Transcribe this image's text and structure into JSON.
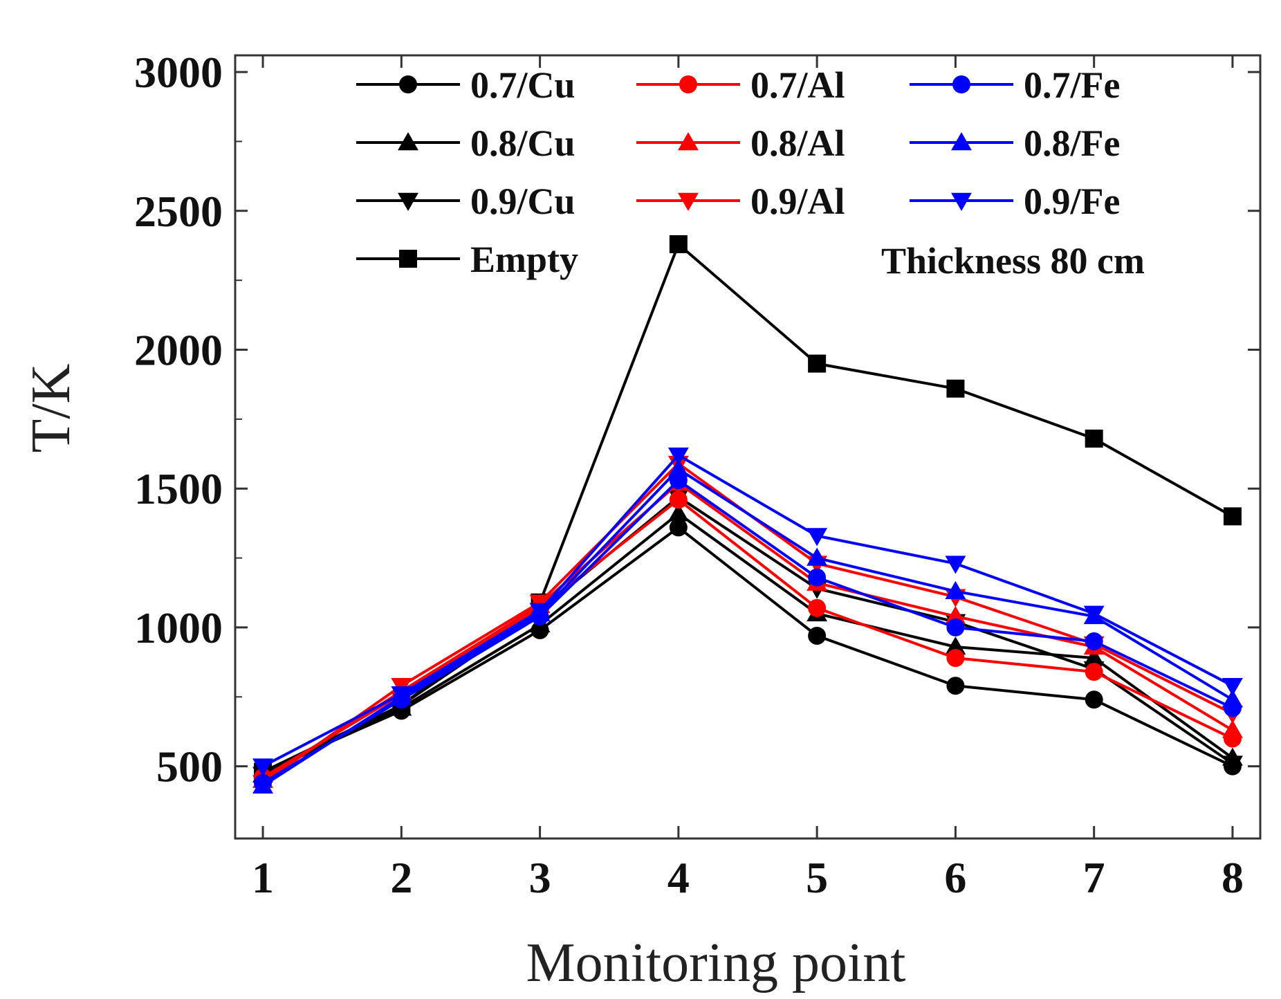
{
  "chart_data": {
    "type": "line",
    "title": "",
    "xlabel": "Monitoring point",
    "ylabel": "T/K",
    "x": [
      1,
      2,
      3,
      4,
      5,
      6,
      7,
      8
    ],
    "xlim": [
      0.8,
      8.2
    ],
    "ylim": [
      240,
      3060
    ],
    "yticks": [
      500,
      1000,
      1500,
      2000,
      2500,
      3000
    ],
    "xtick_labels": [
      "1",
      "2",
      "3",
      "4",
      "5",
      "6",
      "7",
      "8"
    ],
    "ytick_labels": [
      "500",
      "1000",
      "1500",
      "2000",
      "2500",
      "3000"
    ],
    "annotation": "Thickness 80 cm",
    "legend_position": "top",
    "grid": false,
    "colors": {
      "Cu": "#000000",
      "Al": "#ff0000",
      "Fe": "#0000ff",
      "Empty": "#000000"
    },
    "series": [
      {
        "name": "0.7/Cu",
        "color": "#000000",
        "marker": "circle",
        "values": [
          480,
          700,
          990,
          1360,
          970,
          790,
          740,
          500
        ]
      },
      {
        "name": "0.8/Cu",
        "color": "#000000",
        "marker": "triangle-up",
        "values": [
          470,
          710,
          1010,
          1410,
          1050,
          930,
          890,
          530
        ]
      },
      {
        "name": "0.9/Cu",
        "color": "#000000",
        "marker": "triangle-down",
        "values": [
          470,
          720,
          1060,
          1470,
          1140,
          1020,
          850,
          510
        ]
      },
      {
        "name": "Empty",
        "color": "#000000",
        "marker": "square",
        "values": [
          480,
          720,
          1090,
          2380,
          1950,
          1860,
          1680,
          1400
        ]
      },
      {
        "name": "0.7/Al",
        "color": "#ff0000",
        "marker": "circle",
        "values": [
          460,
          760,
          1070,
          1460,
          1070,
          890,
          840,
          600
        ]
      },
      {
        "name": "0.8/Al",
        "color": "#ff0000",
        "marker": "triangle-up",
        "values": [
          450,
          770,
          1080,
          1520,
          1160,
          1040,
          930,
          630
        ]
      },
      {
        "name": "0.9/Al",
        "color": "#ff0000",
        "marker": "triangle-down",
        "values": [
          440,
          790,
          1090,
          1590,
          1230,
          1110,
          940,
          690
        ]
      },
      {
        "name": "0.7/Fe",
        "color": "#0000ff",
        "marker": "circle",
        "values": [
          440,
          740,
          1040,
          1530,
          1180,
          1000,
          950,
          710
        ]
      },
      {
        "name": "0.8/Fe",
        "color": "#0000ff",
        "marker": "triangle-up",
        "values": [
          430,
          750,
          1050,
          1570,
          1250,
          1130,
          1040,
          740
        ]
      },
      {
        "name": "0.9/Fe",
        "color": "#0000ff",
        "marker": "triangle-down",
        "values": [
          500,
          760,
          1060,
          1620,
          1330,
          1230,
          1050,
          790
        ]
      }
    ],
    "legend_order": [
      "0.7/Cu",
      "0.7/Al",
      "0.7/Fe",
      "0.8/Cu",
      "0.8/Al",
      "0.8/Fe",
      "0.9/Cu",
      "0.9/Al",
      "0.9/Fe",
      "Empty"
    ]
  }
}
